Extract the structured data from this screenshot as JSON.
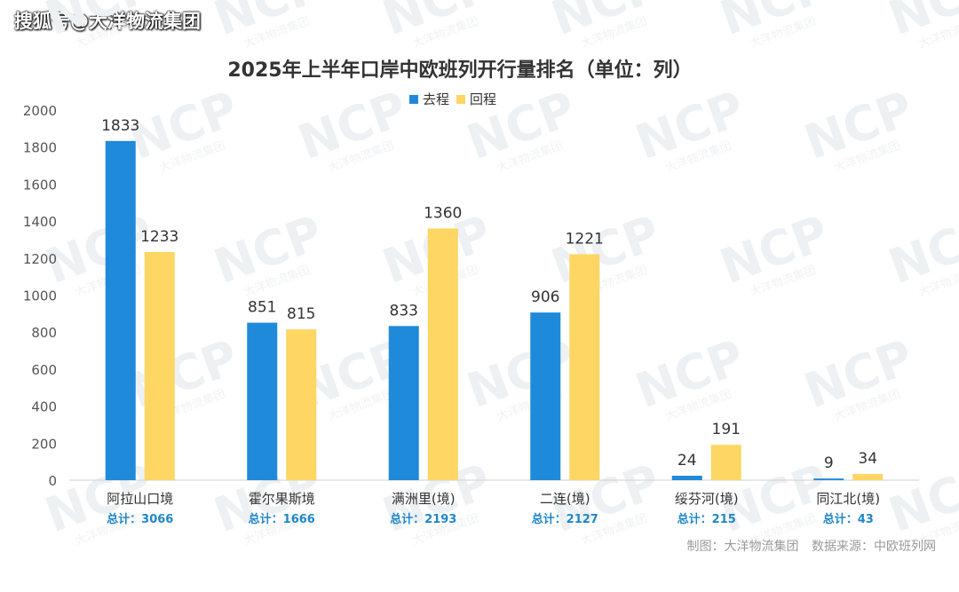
{
  "watermark_text": "搜狐号@大洋物流集团",
  "bg_watermark": {
    "logo": "NCP",
    "subtext": "大洋物流集团"
  },
  "colors": {
    "outbound": "#1f8ad9",
    "inbound": "#fdd663",
    "total": "#1f86c8",
    "text": "#333333",
    "axis_tick": "#555555",
    "grid": "#e6e6e6"
  },
  "chart_data": {
    "type": "bar",
    "title": "2025年上半年口岸中欧班列开行量排名（单位：列）",
    "legend_position": "top-center",
    "categories": [
      "阿拉山口境",
      "霍尔果斯境",
      "满洲里(境)",
      "二连(境)",
      "绥芬河(境)",
      "同江北(境)"
    ],
    "series": [
      {
        "name": "去程",
        "values": [
          1833,
          851,
          833,
          906,
          24,
          9
        ]
      },
      {
        "name": "回程",
        "values": [
          1233,
          815,
          1360,
          1221,
          191,
          34
        ]
      }
    ],
    "totals": [
      "总计：3066",
      "总计：1666",
      "总计：2193",
      "总计：2127",
      "总计：215",
      "总计：43"
    ],
    "yticks": [
      0,
      200,
      400,
      600,
      800,
      1000,
      1200,
      1400,
      1600,
      1800,
      2000
    ],
    "ylim": [
      0,
      2000
    ]
  },
  "footer": {
    "maker": "制图：大洋物流集团",
    "source": "数据来源：中欧班列网"
  }
}
